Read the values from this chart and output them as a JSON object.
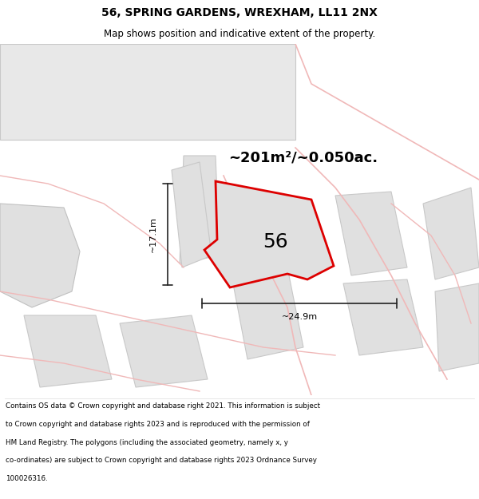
{
  "title_line1": "56, SPRING GARDENS, WREXHAM, LL11 2NX",
  "title_line2": "Map shows position and indicative extent of the property.",
  "area_text": "~201m²/~0.050ac.",
  "label_56": "56",
  "dim_width": "~24.9m",
  "dim_height": "~17.1m",
  "footer_lines": [
    "Contains OS data © Crown copyright and database right 2021. This information is subject",
    "to Crown copyright and database rights 2023 and is reproduced with the permission of",
    "HM Land Registry. The polygons (including the associated geometry, namely x, y",
    "co-ordinates) are subject to Crown copyright and database rights 2023 Ordnance Survey",
    "100026316."
  ],
  "bg_color": "#ffffff",
  "map_bg": "#ffffff",
  "bldg_fill": "#e8e8e8",
  "bldg_edge": "#c8c8c8",
  "neighbor_fill": "#e0e0e0",
  "neighbor_outline": "#c8c8c8",
  "road_color": "#f0b8b8",
  "plot_fill": "#e0e0e0",
  "plot_outline": "#dd0000",
  "title_strip_bg": "#f0f0f0",
  "dim_line_color": "#222222"
}
